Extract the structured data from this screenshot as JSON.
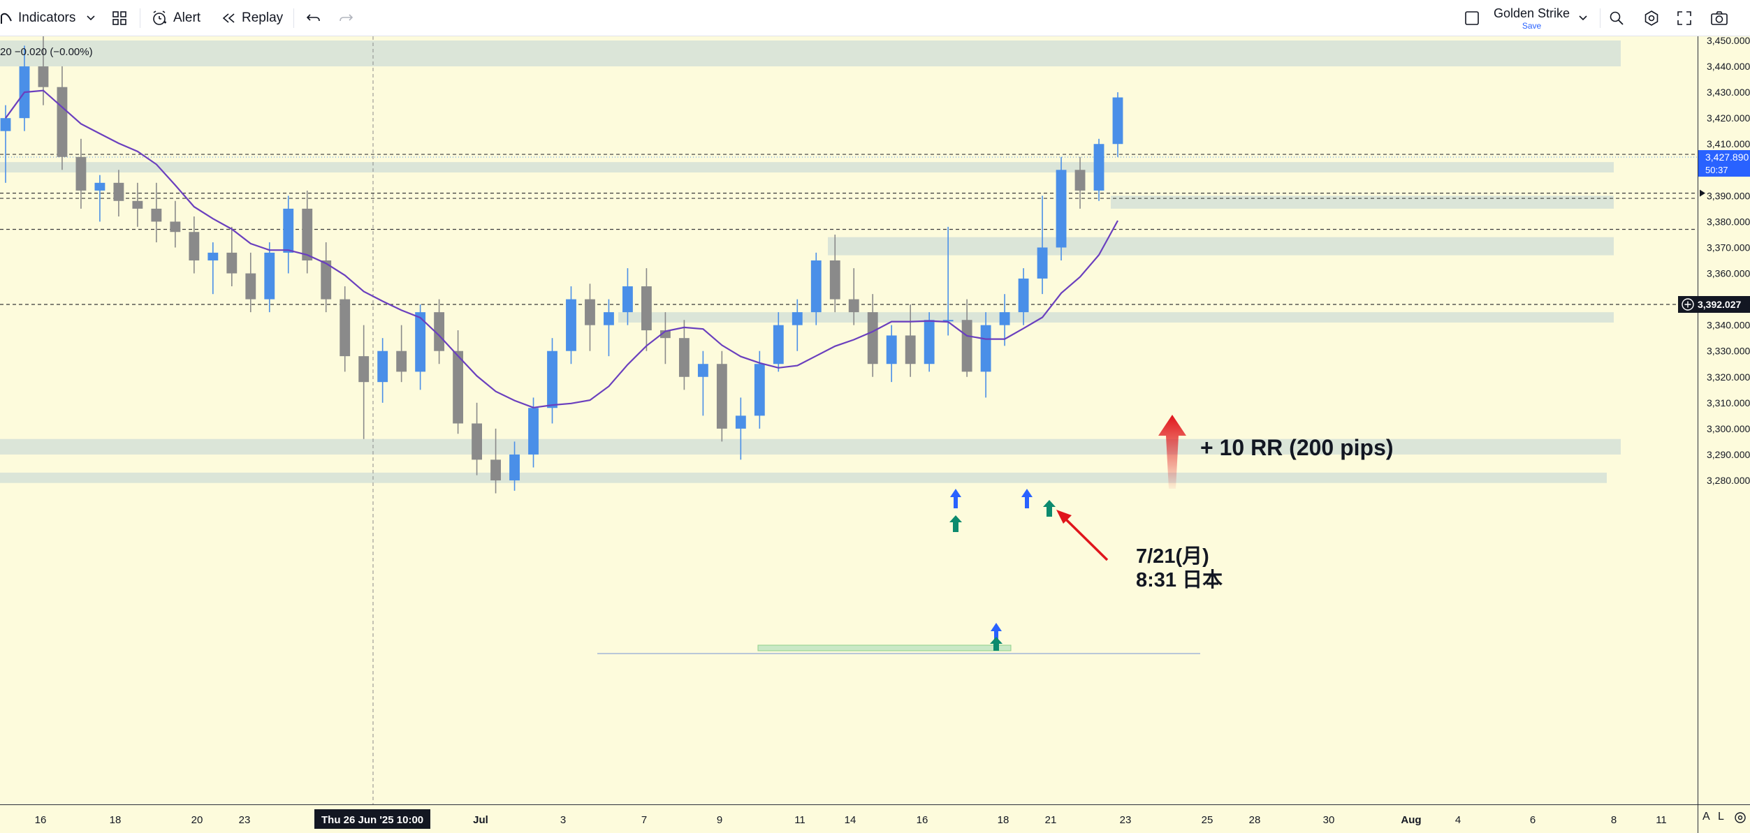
{
  "toolbar": {
    "indicators_label": "Indicators",
    "alert_label": "Alert",
    "replay_label": "Replay",
    "layout_name": "Golden Strike",
    "layout_status": "Save"
  },
  "legend": {
    "change_text": "20  −0.020 (−0.00%)"
  },
  "price_axis": {
    "ticks": [
      "3,450.000",
      "3,440.000",
      "3,430.000",
      "3,420.000",
      "3,410.000",
      "3,400.000",
      "3,390.000",
      "3,380.000",
      "3,370.000",
      "3,360.000",
      "3,350.000",
      "3,340.000",
      "3,330.000",
      "3,320.000",
      "3,310.000",
      "3,300.000",
      "3,290.000",
      "3,280.000"
    ],
    "current_price": "3,427.890",
    "countdown": "50:37",
    "crosshair_price": "3,392.027"
  },
  "time_axis": {
    "ticks": [
      "16",
      "18",
      "20",
      "23",
      "Jul",
      "3",
      "7",
      "9",
      "11",
      "14",
      "16",
      "18",
      "21",
      "23",
      "25",
      "28",
      "30",
      "Aug",
      "4",
      "6",
      "8",
      "11"
    ],
    "crosshair_label": "Thu 26 Jun '25   10:00"
  },
  "bottom_right": {
    "auto_label": "A",
    "log_label": "L"
  },
  "annotations": {
    "rr_text": "+ 10 RR (200 pips)",
    "date_text": "7/21(月)",
    "time_text": "8:31 日本"
  },
  "colors": {
    "background": "#fdfbdc",
    "up": "#4a8fe8",
    "down": "#8a8a8a",
    "ma": "#6a3fbe",
    "zone": "#dbe5d8",
    "arrow_red": "#e0151b",
    "signal_blue": "#2962ff",
    "signal_teal": "#0c8a6e"
  },
  "chart_data": {
    "type": "candlestick",
    "instrument_note": "",
    "y_range": [
      3275,
      3458
    ],
    "candles": [
      [
        3415,
        3425,
        3395,
        3420
      ],
      [
        3420,
        3448,
        3415,
        3440
      ],
      [
        3440,
        3452,
        3425,
        3432
      ],
      [
        3432,
        3440,
        3400,
        3405
      ],
      [
        3405,
        3412,
        3385,
        3392
      ],
      [
        3392,
        3398,
        3380,
        3395
      ],
      [
        3395,
        3400,
        3382,
        3388
      ],
      [
        3388,
        3395,
        3378,
        3385
      ],
      [
        3385,
        3395,
        3372,
        3380
      ],
      [
        3380,
        3388,
        3370,
        3376
      ],
      [
        3376,
        3382,
        3360,
        3365
      ],
      [
        3365,
        3372,
        3352,
        3368
      ],
      [
        3368,
        3378,
        3355,
        3360
      ],
      [
        3360,
        3368,
        3345,
        3350
      ],
      [
        3350,
        3372,
        3345,
        3368
      ],
      [
        3368,
        3390,
        3360,
        3385
      ],
      [
        3385,
        3392,
        3360,
        3365
      ],
      [
        3365,
        3372,
        3345,
        3350
      ],
      [
        3350,
        3355,
        3322,
        3328
      ],
      [
        3328,
        3340,
        3296,
        3318
      ],
      [
        3318,
        3335,
        3310,
        3330
      ],
      [
        3330,
        3340,
        3318,
        3322
      ],
      [
        3322,
        3348,
        3315,
        3345
      ],
      [
        3345,
        3350,
        3325,
        3330
      ],
      [
        3330,
        3338,
        3298,
        3302
      ],
      [
        3302,
        3310,
        3282,
        3288
      ],
      [
        3288,
        3300,
        3275,
        3280
      ],
      [
        3280,
        3295,
        3276,
        3290
      ],
      [
        3290,
        3312,
        3285,
        3308
      ],
      [
        3308,
        3335,
        3302,
        3330
      ],
      [
        3330,
        3355,
        3325,
        3350
      ],
      [
        3350,
        3356,
        3330,
        3340
      ],
      [
        3340,
        3350,
        3328,
        3345
      ],
      [
        3345,
        3362,
        3340,
        3355
      ],
      [
        3355,
        3362,
        3330,
        3338
      ],
      [
        3338,
        3345,
        3325,
        3335
      ],
      [
        3335,
        3342,
        3315,
        3320
      ],
      [
        3320,
        3330,
        3305,
        3325
      ],
      [
        3325,
        3330,
        3295,
        3300
      ],
      [
        3300,
        3312,
        3288,
        3305
      ],
      [
        3305,
        3330,
        3300,
        3325
      ],
      [
        3325,
        3345,
        3322,
        3340
      ],
      [
        3340,
        3350,
        3330,
        3345
      ],
      [
        3345,
        3368,
        3340,
        3365
      ],
      [
        3365,
        3375,
        3345,
        3350
      ],
      [
        3350,
        3362,
        3340,
        3345
      ],
      [
        3345,
        3352,
        3320,
        3325
      ],
      [
        3325,
        3340,
        3318,
        3336
      ],
      [
        3336,
        3348,
        3320,
        3325
      ],
      [
        3325,
        3345,
        3322,
        3342
      ],
      [
        3342,
        3378,
        3336,
        3342
      ],
      [
        3342,
        3350,
        3320,
        3322
      ],
      [
        3322,
        3345,
        3312,
        3340
      ],
      [
        3340,
        3352,
        3332,
        3345
      ],
      [
        3345,
        3362,
        3340,
        3358
      ],
      [
        3358,
        3390,
        3352,
        3370
      ],
      [
        3370,
        3405,
        3365,
        3400
      ],
      [
        3400,
        3405,
        3385,
        3392
      ],
      [
        3392,
        3412,
        3388,
        3410
      ],
      [
        3410,
        3430,
        3405,
        3428
      ]
    ],
    "zones": [
      {
        "from": 3440,
        "to": 3450
      },
      {
        "from": 3399,
        "to": 3403
      },
      {
        "from": 3385,
        "to": 3390
      },
      {
        "from": 3367,
        "to": 3374
      },
      {
        "from": 3341,
        "to": 3345
      },
      {
        "from": 3290,
        "to": 3296
      },
      {
        "from": 3279,
        "to": 3283
      }
    ],
    "horizontal_lines": [
      3406,
      3391,
      3389,
      3377,
      3348
    ],
    "current_price": 3427.89
  }
}
